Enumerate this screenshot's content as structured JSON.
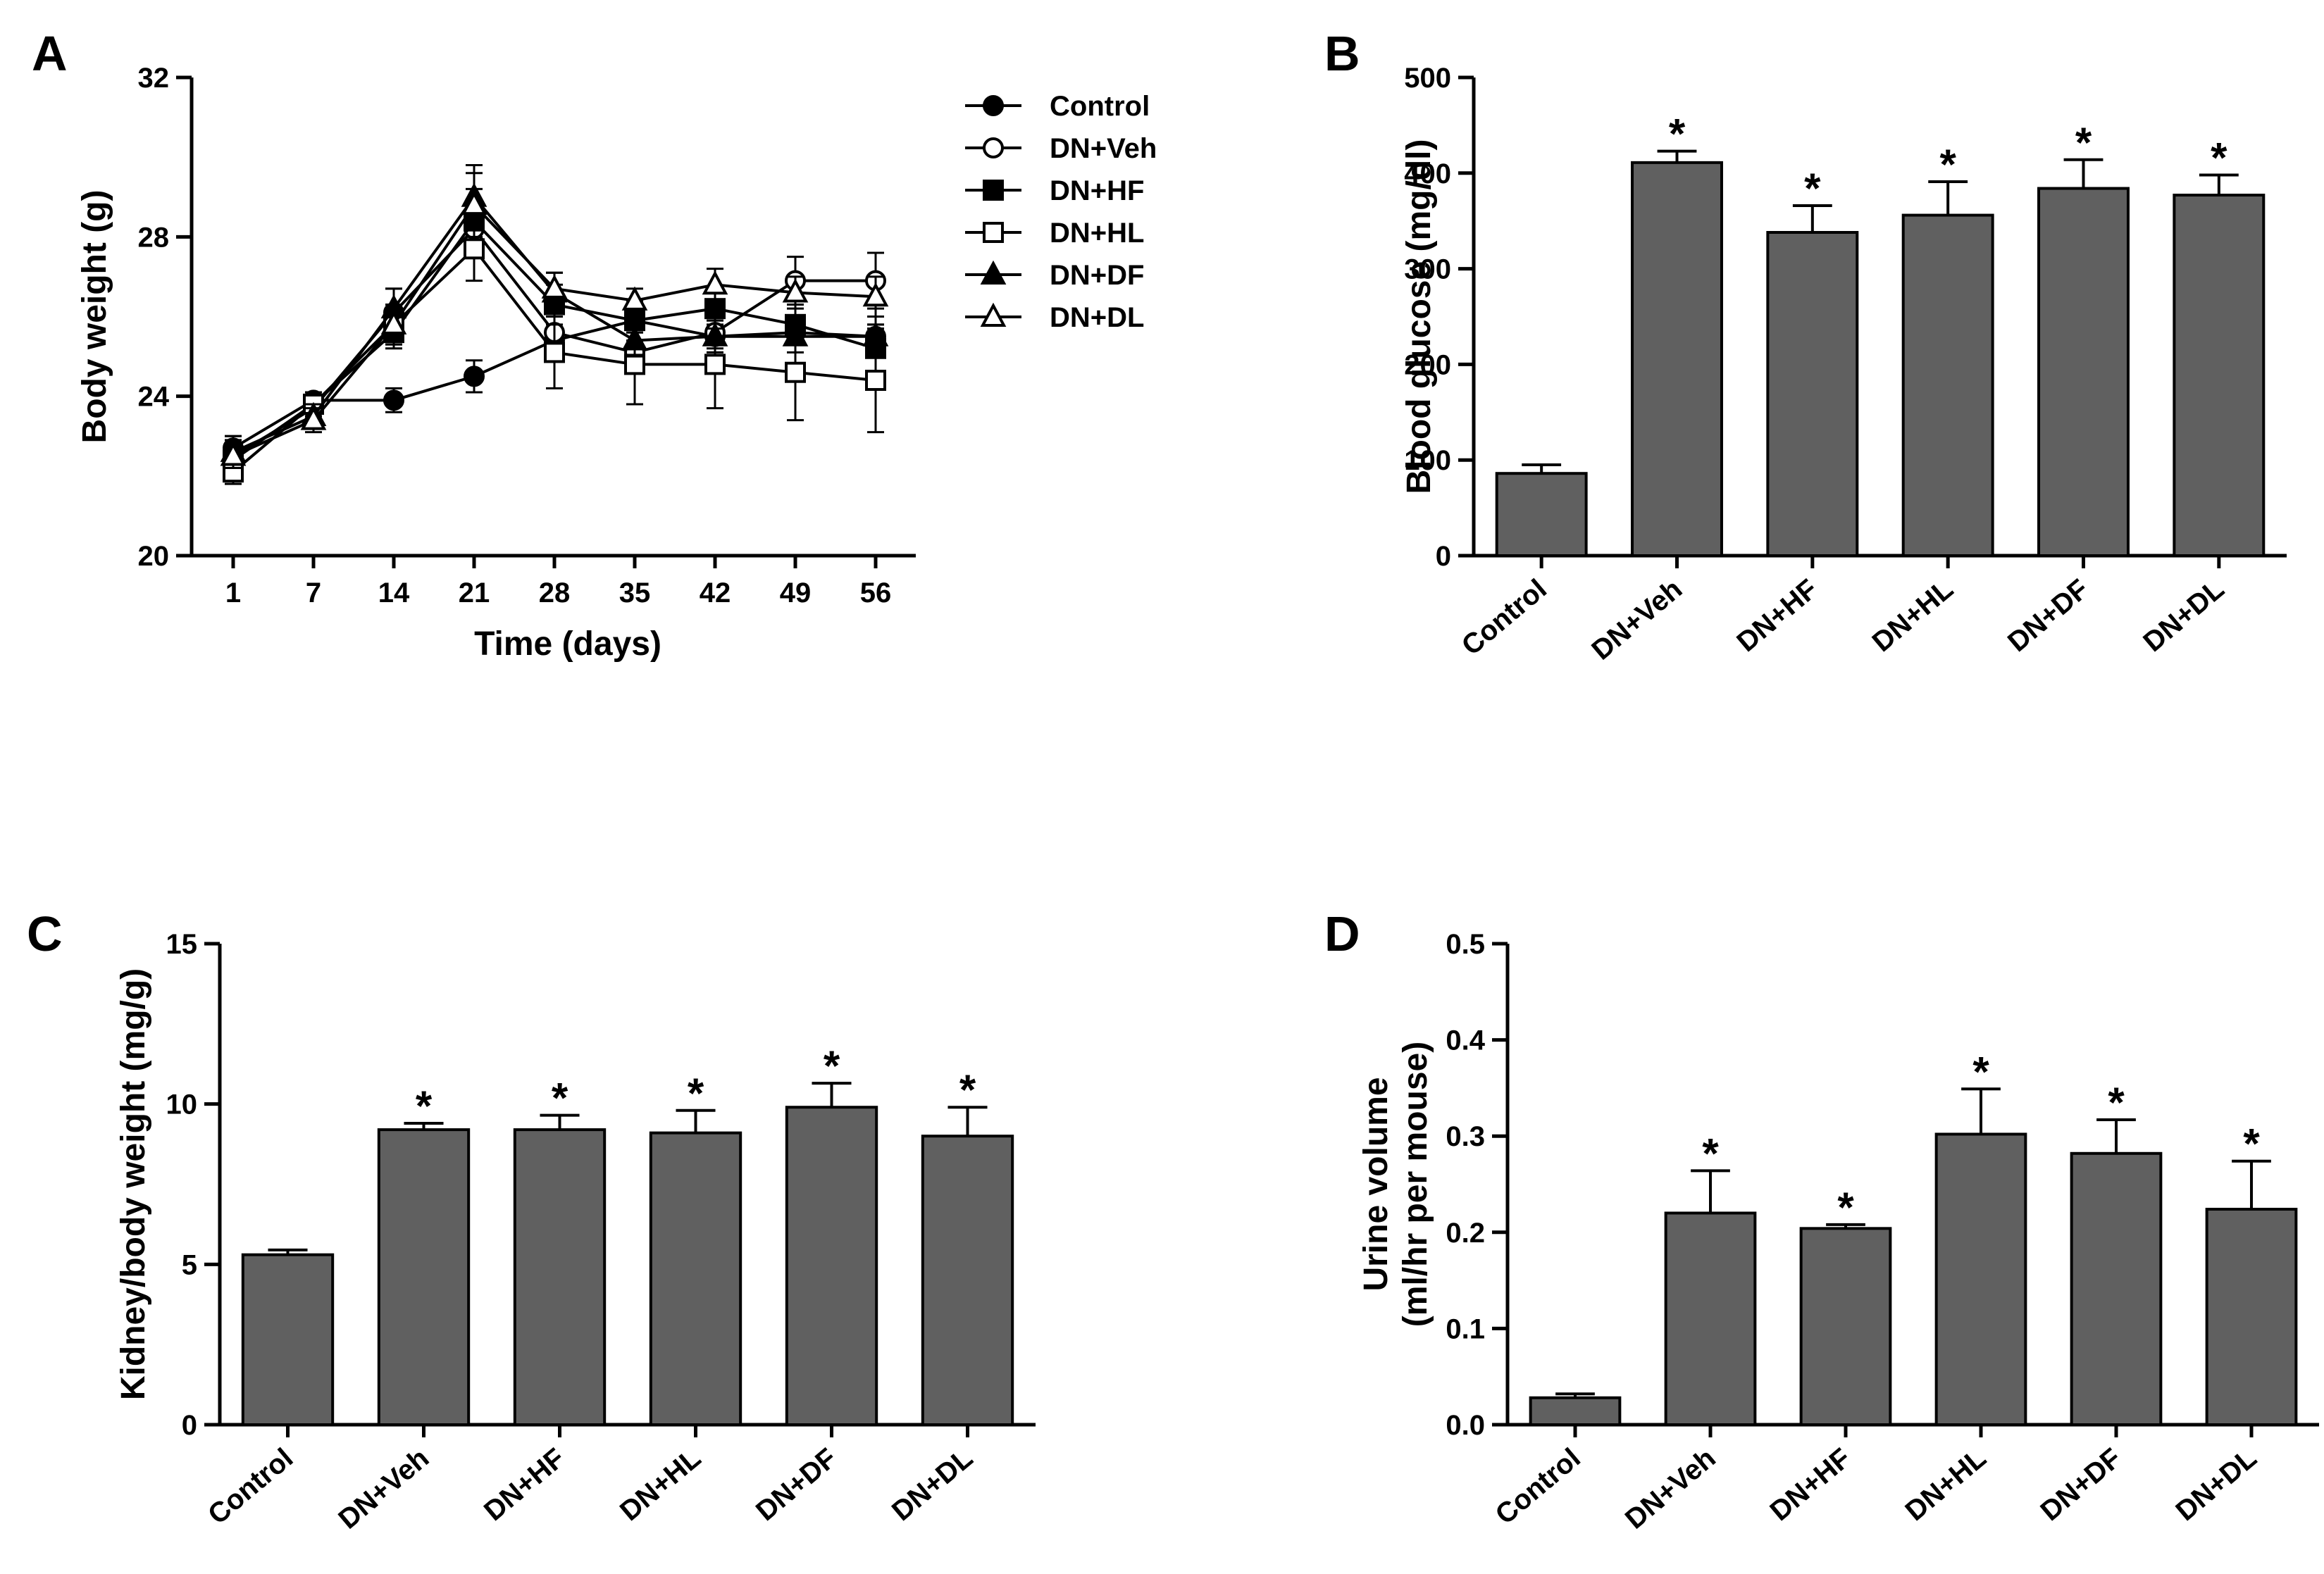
{
  "chart_data": [
    {
      "panel": "A",
      "type": "line",
      "xlabel": "Time (days)",
      "ylabel": "Body weight (g)",
      "x": [
        1,
        7,
        14,
        21,
        28,
        35,
        42,
        49,
        56
      ],
      "ylim": [
        20,
        32
      ],
      "yticks": [
        20,
        24,
        28,
        32
      ],
      "legend_position": "top-right",
      "series": [
        {
          "name": "Control",
          "marker": "filled-circle",
          "values": [
            22.7,
            23.9,
            23.9,
            24.5,
            25.4,
            25.9,
            25.5,
            25.6,
            25.5
          ],
          "errors": [
            0.3,
            0.2,
            0.3,
            0.4,
            0.3,
            0.3,
            0.3,
            0.3,
            0.3
          ]
        },
        {
          "name": "DN+Veh",
          "marker": "open-circle",
          "values": [
            22.5,
            23.7,
            26.1,
            28.2,
            25.6,
            25.1,
            25.6,
            26.9,
            26.9
          ],
          "errors": [
            0.4,
            0.3,
            0.6,
            0.7,
            0.5,
            0.5,
            0.5,
            0.6,
            0.7
          ]
        },
        {
          "name": "DN+HF",
          "marker": "filled-square",
          "values": [
            22.4,
            23.8,
            25.6,
            28.4,
            26.3,
            25.9,
            26.2,
            25.8,
            25.2
          ],
          "errors": [
            0.3,
            0.3,
            0.4,
            0.8,
            0.5,
            0.5,
            0.5,
            0.5,
            0.6
          ]
        },
        {
          "name": "DN+HL",
          "marker": "open-square",
          "values": [
            22.1,
            23.8,
            25.8,
            27.7,
            25.1,
            24.8,
            24.8,
            24.6,
            24.4
          ],
          "errors": [
            0.3,
            0.3,
            0.5,
            0.8,
            0.9,
            1.0,
            1.1,
            1.2,
            1.3
          ]
        },
        {
          "name": "DN+DF",
          "marker": "filled-triangle",
          "values": [
            22.6,
            23.5,
            26.2,
            29.0,
            26.6,
            25.4,
            25.5,
            25.5,
            25.5
          ],
          "errors": [
            0.4,
            0.3,
            0.5,
            0.8,
            0.5,
            0.4,
            0.4,
            0.4,
            0.5
          ]
        },
        {
          "name": "DN+DL",
          "marker": "open-triangle",
          "values": [
            22.5,
            23.4,
            25.8,
            28.8,
            26.7,
            26.4,
            26.8,
            26.6,
            26.5
          ],
          "errors": [
            0.3,
            0.3,
            0.5,
            0.8,
            0.4,
            0.3,
            0.4,
            0.4,
            0.5
          ]
        }
      ]
    },
    {
      "panel": "B",
      "type": "bar",
      "ylabel": "Blood glucose (mg/dl)",
      "categories": [
        "Control",
        "DN+Veh",
        "DN+HF",
        "DN+HL",
        "DN+DF",
        "DN+DL"
      ],
      "values": [
        86,
        411,
        338,
        356,
        384,
        377
      ],
      "errors": [
        9,
        12,
        28,
        35,
        30,
        21
      ],
      "significance": [
        "",
        "*",
        "*",
        "*",
        "*",
        "*"
      ],
      "ylim": [
        0,
        500
      ],
      "yticks": [
        0,
        100,
        200,
        300,
        400,
        500
      ]
    },
    {
      "panel": "C",
      "type": "bar",
      "ylabel": "Kidney/body weight (mg/g)",
      "categories": [
        "Control",
        "DN+Veh",
        "DN+HF",
        "DN+HL",
        "DN+DF",
        "DN+DL"
      ],
      "values": [
        5.3,
        9.2,
        9.2,
        9.1,
        9.9,
        9.0
      ],
      "errors": [
        0.15,
        0.2,
        0.45,
        0.7,
        0.75,
        0.9
      ],
      "significance": [
        "",
        "*",
        "*",
        "*",
        "*",
        "*"
      ],
      "ylim": [
        0,
        15
      ],
      "yticks": [
        0,
        5,
        10,
        15
      ]
    },
    {
      "panel": "D",
      "type": "bar",
      "ylabel": [
        "Urine volume",
        "(ml/hr per mouse)"
      ],
      "categories": [
        "Control",
        "DN+Veh",
        "DN+HF",
        "DN+HL",
        "DN+DF",
        "DN+DL"
      ],
      "values": [
        0.028,
        0.22,
        0.204,
        0.302,
        0.282,
        0.224
      ],
      "errors": [
        0.004,
        0.044,
        0.004,
        0.047,
        0.035,
        0.05
      ],
      "significance": [
        "",
        "*",
        "*",
        "*",
        "*",
        "*"
      ],
      "ylim": [
        0,
        0.5
      ],
      "yticks": [
        0.0,
        0.1,
        0.2,
        0.3,
        0.4,
        0.5
      ]
    }
  ]
}
